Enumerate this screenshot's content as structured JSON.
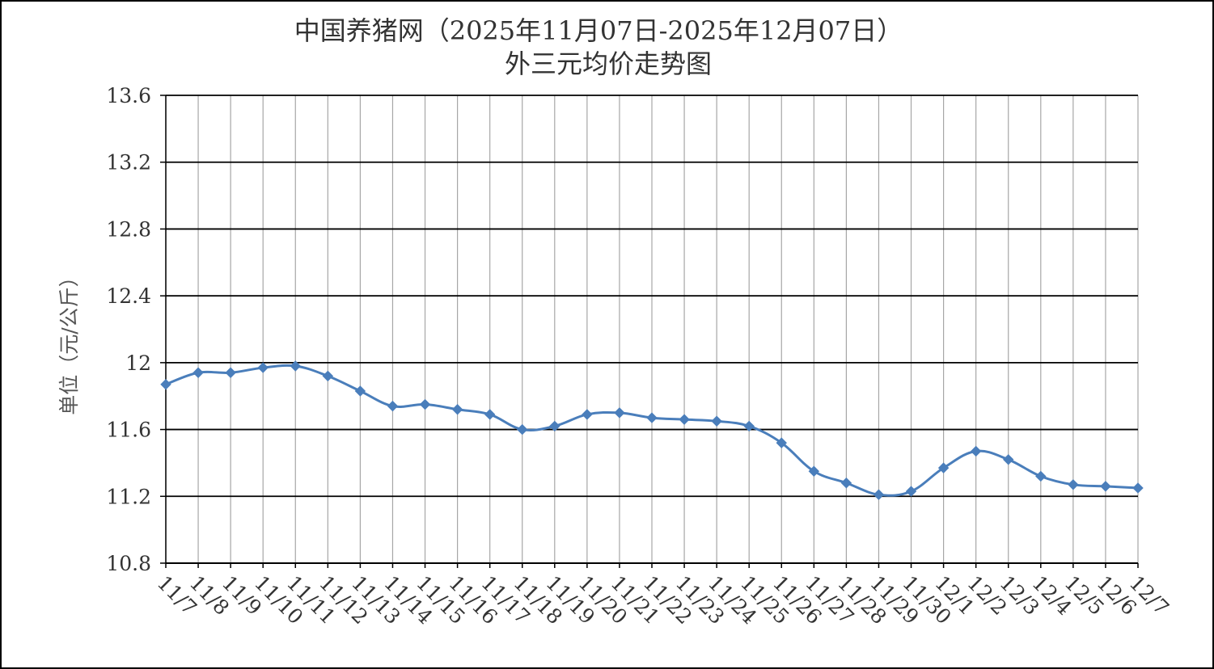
{
  "chart_data": {
    "type": "line",
    "title": "中国养猪网（2025年11月07日-2025年12月07日）",
    "subtitle": "外三元均价走势图",
    "xlabel": "",
    "ylabel": "单位（元/公斤）",
    "ylim": [
      10.8,
      13.6
    ],
    "yticks": [
      "10.8",
      "11.2",
      "11.6",
      "12",
      "12.4",
      "12.8",
      "13.2",
      "13.6"
    ],
    "grid": true,
    "categories": [
      "11/7",
      "11/8",
      "11/9",
      "11/10",
      "11/11",
      "11/12",
      "11/13",
      "11/14",
      "11/15",
      "11/16",
      "11/17",
      "11/18",
      "11/19",
      "11/20",
      "11/21",
      "11/22",
      "11/23",
      "11/24",
      "11/25",
      "11/26",
      "11/27",
      "11/28",
      "11/29",
      "11/30",
      "12/1",
      "12/2",
      "12/3",
      "12/4",
      "12/5",
      "12/6",
      "12/7"
    ],
    "series": [
      {
        "values": [
          11.87,
          11.94,
          11.94,
          11.97,
          11.98,
          11.92,
          11.83,
          11.74,
          11.75,
          11.72,
          11.69,
          11.6,
          11.62,
          11.69,
          11.7,
          11.67,
          11.66,
          11.65,
          11.62,
          11.52,
          11.35,
          11.28,
          11.21,
          11.23,
          11.37,
          11.47,
          11.42,
          11.32,
          11.27,
          11.26,
          11.25
        ],
        "color": "#4a7ebb"
      }
    ]
  }
}
